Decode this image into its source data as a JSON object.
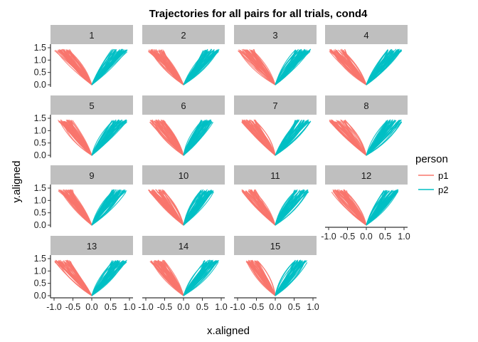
{
  "chart_data": {
    "type": "line",
    "title": "Trajectories for all pairs for all trials, cond4",
    "xlabel": "x.aligned",
    "ylabel": "y.aligned",
    "xlim": [
      -1.0,
      1.0
    ],
    "ylim": [
      0.0,
      1.5
    ],
    "x_ticks": [
      "-1.0",
      "-0.5",
      "0.0",
      "0.5",
      "1.0"
    ],
    "y_ticks": [
      "0.0",
      "0.5",
      "1.0",
      "1.5"
    ],
    "grid": false,
    "legend": {
      "title": "person",
      "position": "right",
      "entries": [
        {
          "label": "p1",
          "color": "#F8766D"
        },
        {
          "label": "p2",
          "color": "#00BFC4"
        }
      ]
    },
    "facets": [
      {
        "label": "1",
        "p1_end": [
          -1.0,
          1.45
        ],
        "p2_end": [
          0.95,
          1.45
        ]
      },
      {
        "label": "2",
        "p1_end": [
          -0.95,
          1.45
        ],
        "p2_end": [
          0.95,
          1.45
        ]
      },
      {
        "label": "3",
        "p1_end": [
          -1.0,
          1.45
        ],
        "p2_end": [
          0.95,
          1.45
        ]
      },
      {
        "label": "4",
        "p1_end": [
          -1.0,
          1.45
        ],
        "p2_end": [
          0.95,
          1.45
        ]
      },
      {
        "label": "5",
        "p1_end": [
          -0.9,
          1.45
        ],
        "p2_end": [
          0.95,
          1.45
        ]
      },
      {
        "label": "6",
        "p1_end": [
          -0.9,
          1.45
        ],
        "p2_end": [
          0.8,
          1.45
        ]
      },
      {
        "label": "7",
        "p1_end": [
          -0.9,
          1.45
        ],
        "p2_end": [
          0.95,
          1.45
        ]
      },
      {
        "label": "8",
        "p1_end": [
          -1.0,
          1.45
        ],
        "p2_end": [
          0.95,
          1.45
        ]
      },
      {
        "label": "9",
        "p1_end": [
          -0.9,
          1.45
        ],
        "p2_end": [
          0.95,
          1.45
        ]
      },
      {
        "label": "10",
        "p1_end": [
          -0.95,
          1.45
        ],
        "p2_end": [
          0.8,
          1.45
        ]
      },
      {
        "label": "11",
        "p1_end": [
          -0.9,
          1.45
        ],
        "p2_end": [
          0.9,
          1.45
        ]
      },
      {
        "label": "12",
        "p1_end": [
          -0.95,
          1.45
        ],
        "p2_end": [
          0.85,
          1.45
        ]
      },
      {
        "label": "13",
        "p1_end": [
          -1.0,
          1.45
        ],
        "p2_end": [
          0.95,
          1.45
        ]
      },
      {
        "label": "14",
        "p1_end": [
          -0.9,
          1.45
        ],
        "p2_end": [
          0.95,
          1.45
        ]
      },
      {
        "label": "15",
        "p1_end": [
          -0.8,
          1.45
        ],
        "p2_end": [
          0.85,
          1.45
        ]
      }
    ]
  }
}
